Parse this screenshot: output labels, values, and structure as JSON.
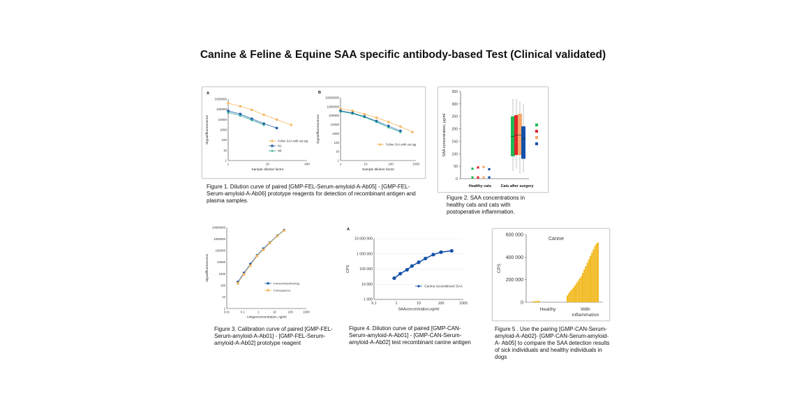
{
  "page": {
    "title": "Canine & Feline & Equine SAA specific antibody-based Test (Clinical validated)"
  },
  "captions": {
    "fig1": "Figure 1. Dilution curve of paired [GMP-FEL-Serum-amyloid-A-Ab05] - [GMP-FEL-Serum-amyloid-A-Ab06] prototype reagents for detection of recombinant antigen and plasma samples.",
    "fig2": "Figure 2. SAA concentrations in healthy cats and cats with postoperative inflammation.",
    "fig3": "Figure 3. Calibration curve of paired [GMP-FEL-Serum-amyloid-A-Ab01] - [GMP-FEL-Serum-amyloid-A-Ab02] prototype reagent",
    "fig4": "Figure 4. Dilution curve of paired [GMP-CAN-Serum-amyloid-A-Ab01] - [GMP-CAN-Serum-amyloid-A-Ab02] test recombinant canine antigen",
    "fig5": "Figure 5 . Use the pairing [GMP-CAN-Serum-amyloid-A-Ab02]- [GMP-CAN-Serum-amyloid-A- Ab05] to compare the SAA detection results of sick individuals and healthy individuals in dogs"
  },
  "chart_data": [
    {
      "id": "fig1A",
      "type": "line",
      "panel_label": "A",
      "xlabel": "Sample dilution factor",
      "ylabel": "Signal/fluorescence",
      "x_ticks": [
        "1",
        "20",
        "400"
      ],
      "xlim": [
        1,
        400
      ],
      "xscale": "log",
      "y_ticks": [
        "1",
        "10",
        "100",
        "1000",
        "10000",
        "100000",
        "1000000"
      ],
      "ylim": [
        1,
        1000000
      ],
      "yscale": "log",
      "series": [
        {
          "name": "Feline SAA with out tag",
          "color": "#f3b65b",
          "marker": "circle",
          "x": [
            1,
            2.5,
            6,
            15,
            40,
            120
          ],
          "y": [
            400000,
            200000,
            90000,
            30000,
            10000,
            3000
          ]
        },
        {
          "name": "N1",
          "color": "#1f5fa8",
          "marker": "square",
          "x": [
            1,
            2.5,
            6,
            15,
            40
          ],
          "y": [
            70000,
            35000,
            12000,
            4000,
            1500
          ]
        },
        {
          "name": "N8",
          "color": "#1aa38a",
          "marker": "triangle",
          "x": [
            1,
            2.5,
            6,
            15
          ],
          "y": [
            50000,
            25000,
            9000,
            3000
          ]
        }
      ]
    },
    {
      "id": "fig1B",
      "type": "line",
      "panel_label": "B",
      "xlabel": "Sample dilution factor",
      "ylabel": "Signal/fluorescence",
      "x_ticks": [
        "1",
        "10",
        "100",
        "1000"
      ],
      "xlim": [
        1,
        1000
      ],
      "xscale": "log",
      "y_ticks": [
        "1",
        "10",
        "100",
        "1000",
        "10000",
        "100000",
        "1000000",
        "10000000"
      ],
      "ylim": [
        1,
        10000000
      ],
      "yscale": "log",
      "series": [
        {
          "name": "Feline SAA with out tag",
          "color": "#f3b65b",
          "marker": "circle",
          "x": [
            1,
            3,
            9,
            27,
            81,
            243,
            729
          ],
          "y": [
            600000,
            350000,
            150000,
            60000,
            20000,
            6000,
            1500
          ]
        },
        {
          "name": "",
          "color": "#1f5fa8",
          "marker": "square",
          "x": [
            1,
            3,
            9,
            27,
            81,
            243
          ],
          "y": [
            350000,
            200000,
            80000,
            25000,
            7000,
            2000
          ]
        },
        {
          "name": "",
          "color": "#1aa38a",
          "marker": "triangle",
          "x": [
            1,
            3,
            9,
            27,
            81,
            243
          ],
          "y": [
            300000,
            170000,
            70000,
            20000,
            5000,
            1500
          ]
        }
      ]
    },
    {
      "id": "fig2",
      "type": "box",
      "ylabel": "SAA concentration, µg/ml",
      "categories": [
        "Healthy cats",
        "Cats after surgery"
      ],
      "y_ticks": [
        "0",
        "50",
        "100",
        "150",
        "200",
        "250",
        "300",
        "350"
      ],
      "ylim": [
        0,
        350
      ],
      "colors": [
        "#1db954",
        "#e0262b",
        "#f7a86b",
        "#1351a8"
      ],
      "healthy_points": [
        {
          "color": "#1db954",
          "values": [
            5,
            40
          ]
        },
        {
          "color": "#e0262b",
          "values": [
            5,
            45
          ]
        },
        {
          "color": "#f7a86b",
          "values": [
            5,
            47
          ]
        },
        {
          "color": "#1351a8",
          "values": [
            5,
            38
          ]
        }
      ],
      "surgery_boxes": [
        {
          "color": "#1db954",
          "min": 30,
          "q1": 90,
          "median": 170,
          "q3": 250,
          "max": 320
        },
        {
          "color": "#e0262b",
          "min": 40,
          "q1": 95,
          "median": 175,
          "q3": 255,
          "max": 320
        },
        {
          "color": "#f7a86b",
          "min": 20,
          "q1": 95,
          "median": 175,
          "q3": 260,
          "max": 310
        },
        {
          "color": "#1351a8",
          "min": 25,
          "q1": 80,
          "median": 160,
          "q3": 210,
          "max": 300
        }
      ]
    },
    {
      "id": "fig3",
      "type": "line",
      "xlabel": "Antigenconcentration, ng/ml",
      "ylabel": "Signal/fluorescence",
      "x_ticks": [
        "0.01",
        "0.1",
        "1",
        "10",
        "100",
        "1000"
      ],
      "xlim": [
        0.01,
        1000
      ],
      "xscale": "log",
      "y_ticks": [
        "1",
        "10",
        "100",
        "1000",
        "10000",
        "100000",
        "1000000",
        "10000000"
      ],
      "ylim": [
        1,
        10000000
      ],
      "yscale": "log",
      "series": [
        {
          "name": "FelineSAAwithouttag",
          "color": "#1f5fa8",
          "marker": "square",
          "x": [
            0.05,
            0.12,
            0.3,
            0.8,
            2,
            5,
            15,
            40
          ],
          "y": [
            200,
            1200,
            7000,
            40000,
            150000,
            500000,
            2000000,
            6000000
          ]
        },
        {
          "name": "Felineplasma",
          "color": "#f3b65b",
          "marker": "square",
          "x": [
            0.05,
            0.12,
            0.3,
            0.8,
            2,
            5,
            15,
            40
          ],
          "y": [
            150,
            900,
            5000,
            35000,
            120000,
            450000,
            1800000,
            5500000
          ]
        }
      ]
    },
    {
      "id": "fig4",
      "type": "line",
      "panel_label": "A",
      "xlabel": "SAAconcentration,ng/ml",
      "ylabel": "CPS",
      "x_ticks": [
        "0.1",
        "1",
        "10",
        "100",
        "1000"
      ],
      "xlim": [
        0.1,
        1000
      ],
      "xscale": "log",
      "y_ticks": [
        "1 000",
        "10 000",
        "100 000",
        "1 000 000",
        "10 000 000"
      ],
      "ylim": [
        1000,
        10000000
      ],
      "yscale": "log",
      "series": [
        {
          "name": "Canine recombinant SAA",
          "color": "#1351a8",
          "marker": "circle",
          "x": [
            0.8,
            1.5,
            3,
            5,
            10,
            20,
            45,
            100,
            300
          ],
          "y": [
            25000,
            50000,
            90000,
            160000,
            280000,
            500000,
            900000,
            1300000,
            1600000
          ]
        }
      ]
    },
    {
      "id": "fig5",
      "type": "bar",
      "title": "Canine",
      "ylabel": "CPS",
      "categories": [
        "Healthy",
        "With inflammation"
      ],
      "y_ticks": [
        "0",
        "200 000",
        "400 000",
        "600 000"
      ],
      "ylim": [
        0,
        600000
      ],
      "color": "#f2b81c",
      "healthy_values": [
        8000,
        9000,
        10000,
        11000,
        12000
      ],
      "inflammation_values": [
        60000,
        80000,
        100000,
        115000,
        130000,
        150000,
        170000,
        190000,
        210000,
        230000,
        260000,
        290000,
        320000,
        350000,
        380000,
        410000,
        440000,
        470000,
        500000,
        520000,
        530000
      ]
    }
  ]
}
